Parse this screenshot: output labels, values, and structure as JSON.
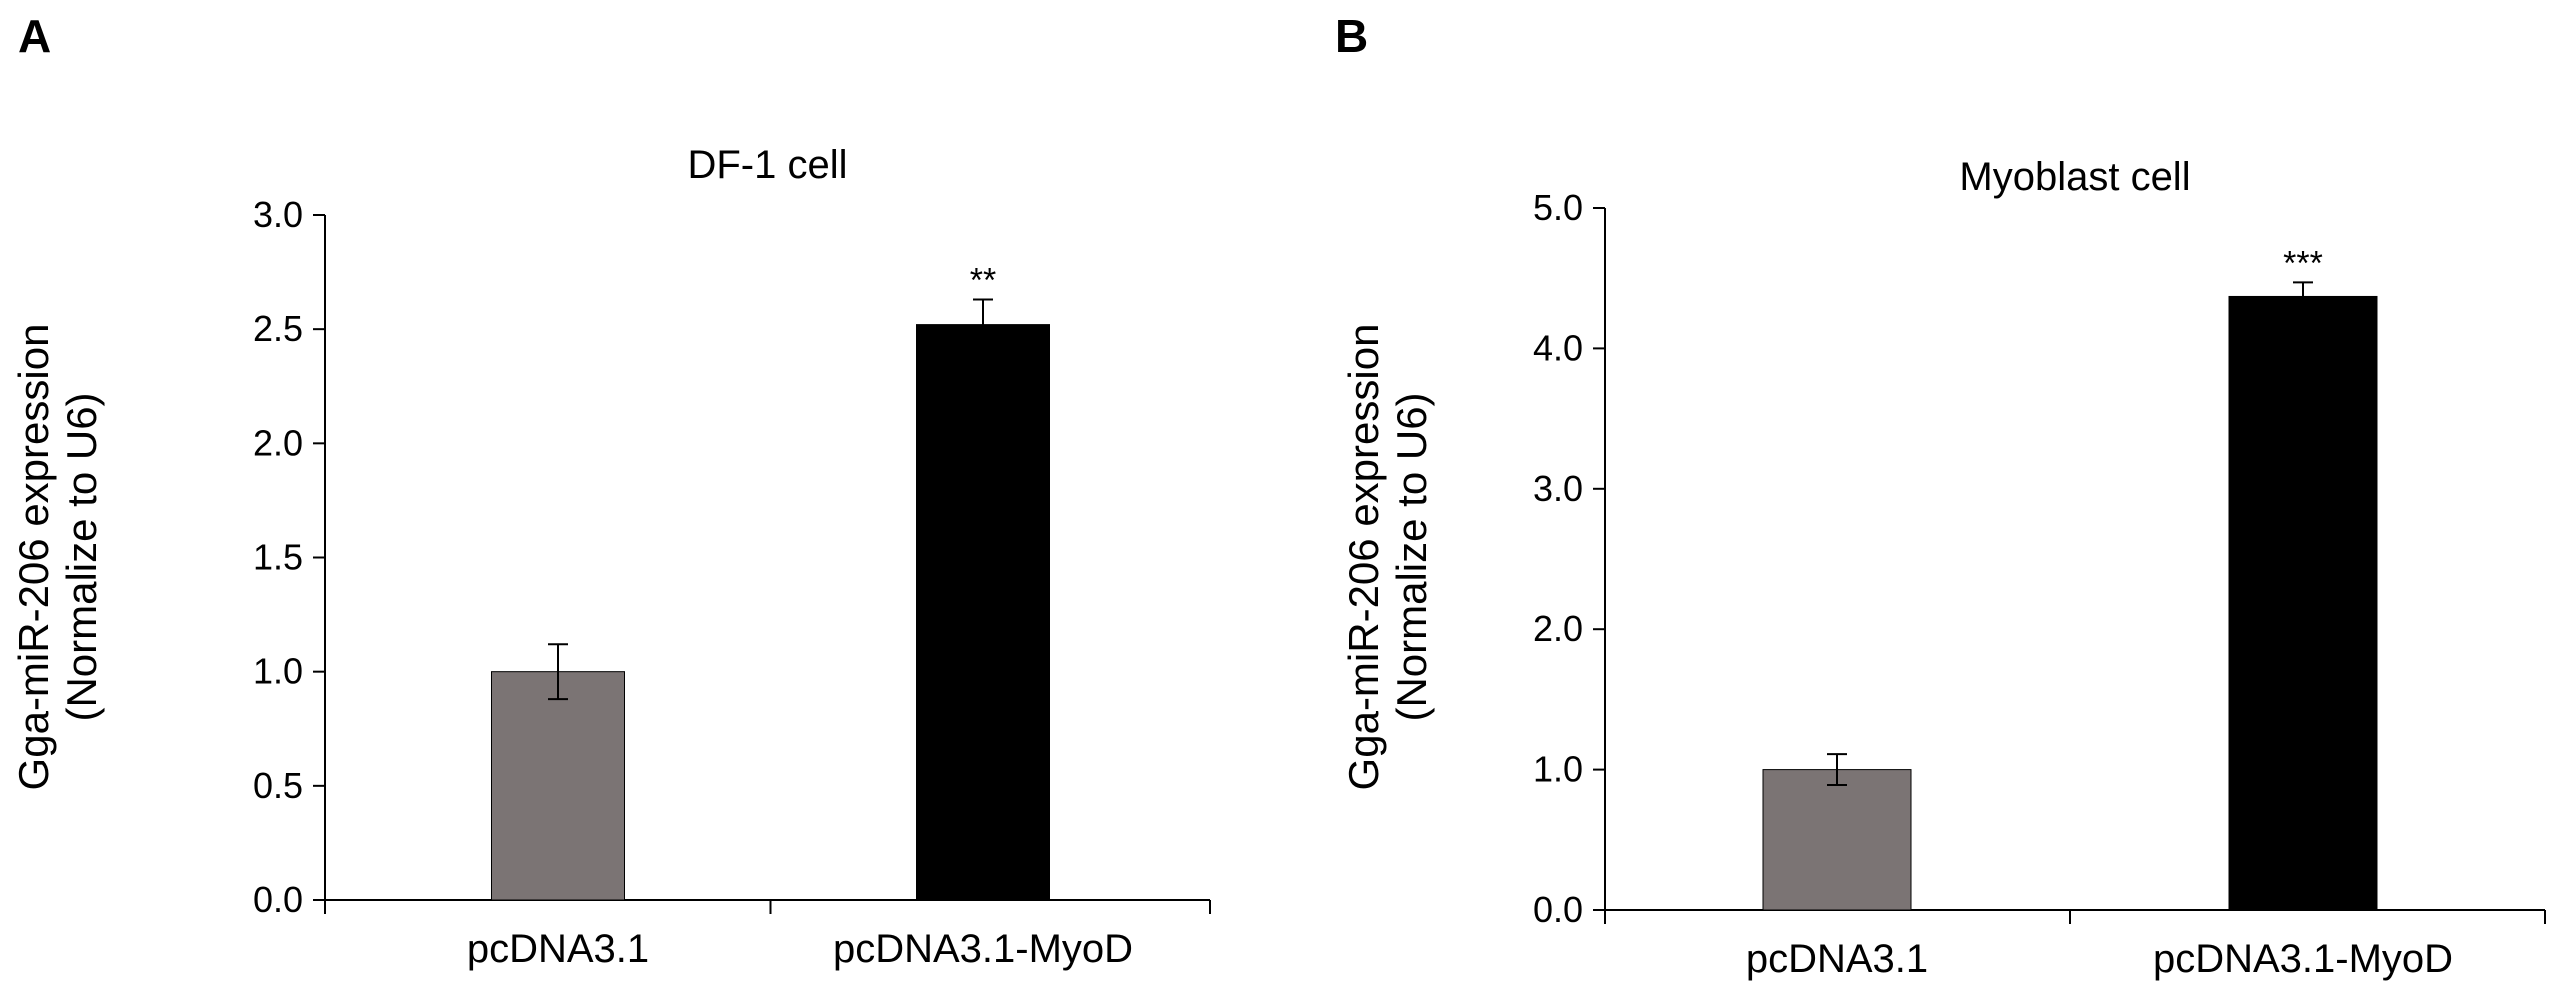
{
  "chart_data": [
    {
      "panel": "A",
      "type": "bar",
      "title": "DF-1 cell",
      "ylabel_lines": [
        "Gga-miR-206 expression",
        "(Normalize to U6)"
      ],
      "xlabel": "",
      "categories": [
        "pcDNA3.1",
        "pcDNA3.1-MyoD"
      ],
      "values": [
        1.0,
        2.52
      ],
      "errors": [
        0.12,
        0.11
      ],
      "significance": [
        "",
        "**"
      ],
      "colors": [
        "#7b7474",
        "#000000"
      ],
      "ylim": [
        0,
        3.0
      ],
      "yticks": [
        0,
        0.5,
        1.0,
        1.5,
        2.0,
        2.5,
        3.0
      ],
      "ytick_labels": [
        "0.0",
        "0.5",
        "1.0",
        "1.5",
        "2.0",
        "2.5",
        "3.0"
      ],
      "grid": false,
      "legend": "none"
    },
    {
      "panel": "B",
      "type": "bar",
      "title": "Myoblast cell",
      "ylabel_lines": [
        "Gga-miR-206 expression",
        "(Normalize to U6)"
      ],
      "xlabel": "",
      "categories": [
        "pcDNA3.1",
        "pcDNA3.1-MyoD"
      ],
      "values": [
        1.0,
        4.37
      ],
      "errors": [
        0.11,
        0.1
      ],
      "significance": [
        "",
        "***"
      ],
      "colors": [
        "#7b7474",
        "#000000"
      ],
      "ylim": [
        0,
        5.0
      ],
      "yticks": [
        0,
        1.0,
        2.0,
        3.0,
        4.0,
        5.0
      ],
      "ytick_labels": [
        "0.0",
        "1.0",
        "2.0",
        "3.0",
        "4.0",
        "5.0"
      ],
      "grid": false,
      "legend": "none"
    }
  ]
}
